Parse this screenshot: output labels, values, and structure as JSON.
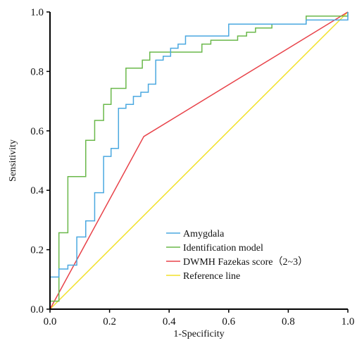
{
  "chart_data": {
    "type": "line",
    "title": "",
    "xlabel": "1-Specificity",
    "ylabel": "Sensitivity",
    "xlim": [
      0.0,
      1.0
    ],
    "ylim": [
      0.0,
      1.0
    ],
    "x_ticks": [
      "0.0",
      "0.2",
      "0.4",
      "0.6",
      "0.8",
      "1.0"
    ],
    "y_ticks": [
      "0.0",
      "0.2",
      "0.4",
      "0.6",
      "0.8",
      "1.0"
    ],
    "grid": false,
    "legend_position": "bottom-center",
    "series": [
      {
        "name": "Amygdala",
        "color": "#4aa8e0",
        "points": [
          [
            0.0,
            0.0
          ],
          [
            0.0,
            0.108
          ],
          [
            0.03,
            0.108
          ],
          [
            0.03,
            0.135
          ],
          [
            0.06,
            0.135
          ],
          [
            0.06,
            0.148
          ],
          [
            0.09,
            0.148
          ],
          [
            0.09,
            0.162
          ],
          [
            0.09,
            0.243
          ],
          [
            0.12,
            0.243
          ],
          [
            0.12,
            0.297
          ],
          [
            0.15,
            0.297
          ],
          [
            0.15,
            0.392
          ],
          [
            0.18,
            0.392
          ],
          [
            0.18,
            0.514
          ],
          [
            0.205,
            0.514
          ],
          [
            0.205,
            0.541
          ],
          [
            0.23,
            0.541
          ],
          [
            0.23,
            0.676
          ],
          [
            0.255,
            0.676
          ],
          [
            0.255,
            0.689
          ],
          [
            0.28,
            0.689
          ],
          [
            0.28,
            0.716
          ],
          [
            0.305,
            0.716
          ],
          [
            0.305,
            0.73
          ],
          [
            0.33,
            0.73
          ],
          [
            0.33,
            0.757
          ],
          [
            0.355,
            0.757
          ],
          [
            0.355,
            0.838
          ],
          [
            0.38,
            0.838
          ],
          [
            0.38,
            0.851
          ],
          [
            0.405,
            0.851
          ],
          [
            0.405,
            0.878
          ],
          [
            0.43,
            0.878
          ],
          [
            0.43,
            0.892
          ],
          [
            0.455,
            0.892
          ],
          [
            0.455,
            0.919
          ],
          [
            0.6,
            0.919
          ],
          [
            0.6,
            0.959
          ],
          [
            0.86,
            0.959
          ],
          [
            0.86,
            0.973
          ],
          [
            1.0,
            0.973
          ],
          [
            1.0,
            1.0
          ]
        ]
      },
      {
        "name": "Identification model",
        "color": "#6ab84a",
        "points": [
          [
            0.0,
            0.0
          ],
          [
            0.0,
            0.027
          ],
          [
            0.03,
            0.027
          ],
          [
            0.03,
            0.257
          ],
          [
            0.06,
            0.257
          ],
          [
            0.06,
            0.446
          ],
          [
            0.12,
            0.446
          ],
          [
            0.12,
            0.568
          ],
          [
            0.15,
            0.568
          ],
          [
            0.15,
            0.635
          ],
          [
            0.18,
            0.635
          ],
          [
            0.18,
            0.689
          ],
          [
            0.205,
            0.689
          ],
          [
            0.205,
            0.743
          ],
          [
            0.255,
            0.743
          ],
          [
            0.255,
            0.811
          ],
          [
            0.31,
            0.811
          ],
          [
            0.31,
            0.838
          ],
          [
            0.335,
            0.838
          ],
          [
            0.335,
            0.865
          ],
          [
            0.51,
            0.865
          ],
          [
            0.51,
            0.892
          ],
          [
            0.54,
            0.892
          ],
          [
            0.54,
            0.905
          ],
          [
            0.63,
            0.905
          ],
          [
            0.63,
            0.919
          ],
          [
            0.66,
            0.919
          ],
          [
            0.66,
            0.932
          ],
          [
            0.69,
            0.932
          ],
          [
            0.69,
            0.946
          ],
          [
            0.745,
            0.946
          ],
          [
            0.745,
            0.959
          ],
          [
            0.86,
            0.959
          ],
          [
            0.86,
            0.986
          ],
          [
            1.0,
            0.986
          ],
          [
            1.0,
            1.0
          ]
        ]
      },
      {
        "name": "DWMH Fazekas score（2~3）",
        "color": "#e8434a",
        "points": [
          [
            0.0,
            0.0
          ],
          [
            0.315,
            0.581
          ],
          [
            1.0,
            1.0
          ]
        ]
      },
      {
        "name": "Reference line",
        "color": "#f2e12a",
        "points": [
          [
            0.0,
            0.0
          ],
          [
            1.0,
            1.0
          ]
        ]
      }
    ]
  }
}
